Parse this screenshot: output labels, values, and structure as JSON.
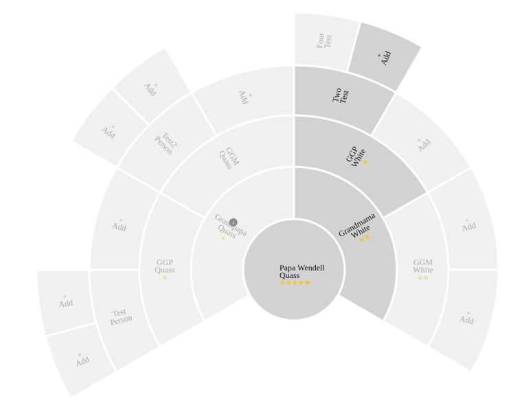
{
  "root": {
    "line1": "Papa Wendell",
    "line2": "Quass",
    "stars": "★★★★★",
    "plus": "+"
  },
  "gen1": {
    "left": {
      "name": [
        "Grandpapa",
        "Quass"
      ],
      "stars": "★",
      "badge": "i"
    },
    "right": {
      "name": [
        "Grandmama",
        "White"
      ],
      "stars": "★★"
    }
  },
  "gen2": {
    "ggp_quass": {
      "name": [
        "GGP",
        "Quass"
      ],
      "stars": "★"
    },
    "ggm_quass": {
      "name": [
        "GGM",
        "Quass"
      ]
    },
    "ggp_white": {
      "name": [
        "GGP",
        "White"
      ],
      "stars": "★"
    },
    "ggm_white": {
      "name": [
        "GGM",
        "White"
      ],
      "stars": "★★"
    }
  },
  "gen3": {
    "test_person": {
      "name": [
        "Test",
        "Person"
      ]
    },
    "test2_person": {
      "name": [
        "Test2",
        "Person"
      ]
    },
    "two_test": {
      "name": [
        "Two",
        "Test"
      ]
    }
  },
  "gen4": {
    "four_test": {
      "name": [
        "Four",
        "Test"
      ]
    }
  },
  "add_label": "Add",
  "add_plus": "+",
  "colors": {
    "light": "#f0f0f0",
    "dark": "#d2d2d2",
    "star": "#f5c518",
    "text_muted": "#a9a9a9",
    "text_dark": "#111111"
  }
}
